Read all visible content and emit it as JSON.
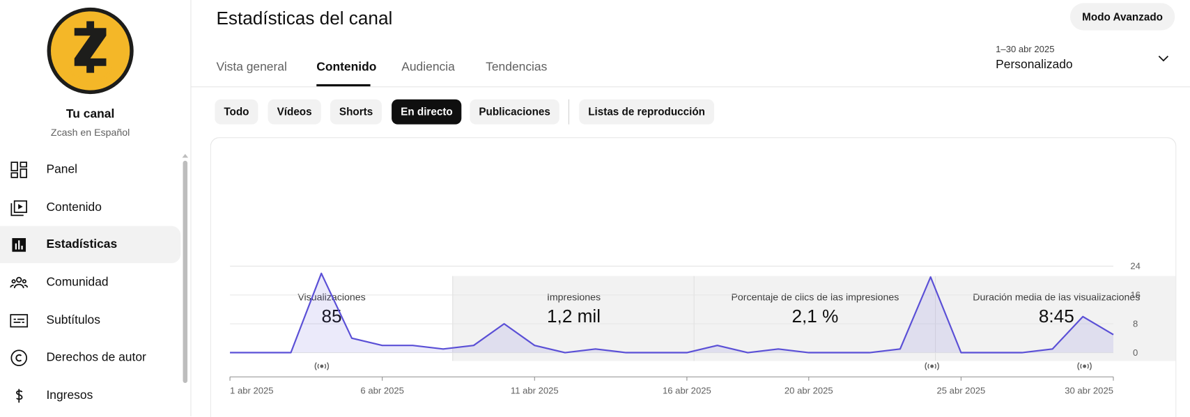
{
  "sidebar": {
    "avatar_text": "Zcash en español",
    "channel_label": "Tu canal",
    "channel_name": "Zcash en Español",
    "nav": [
      "Panel",
      "Contenido",
      "Estadísticas",
      "Comunidad",
      "Subtítulos",
      "Derechos de autor",
      "Ingresos"
    ]
  },
  "header": {
    "title": "Estadísticas del canal",
    "advanced_button": "Modo Avanzado",
    "date_range": "1–30 abr 2025",
    "period": "Personalizado"
  },
  "tabs": [
    "Vista general",
    "Contenido",
    "Audiencia",
    "Tendencias"
  ],
  "filters": [
    "Todo",
    "Vídeos",
    "Shorts",
    "En directo",
    "Publicaciones",
    "Listas de reproducción"
  ],
  "metrics": [
    {
      "label": "Visualizaciones",
      "value": "85"
    },
    {
      "label": "Impresiones",
      "value": "1,2 mil"
    },
    {
      "label": "Porcentaje de clics de las impresiones",
      "value": "2,1 %"
    },
    {
      "label": "Duración media de las visualizaciones",
      "value": "8:45"
    }
  ],
  "chart_data": {
    "type": "line",
    "categories": [
      "1 abr 2025",
      null,
      null,
      null,
      null,
      "6 abr 2025",
      null,
      null,
      null,
      null,
      "11 abr 2025",
      null,
      null,
      null,
      null,
      "16 abr 2025",
      null,
      null,
      null,
      "20 abr 2025",
      null,
      null,
      null,
      null,
      "25 abr 2025",
      null,
      null,
      null,
      null,
      "30 abr 2025"
    ],
    "values": [
      0,
      0,
      0,
      22,
      4,
      2,
      2,
      1,
      2,
      8,
      2,
      0,
      1,
      0,
      0,
      0,
      2,
      0,
      1,
      0,
      0,
      0,
      1,
      21,
      0,
      0,
      0,
      1,
      10,
      5
    ],
    "color": "#5a4fd6",
    "area": true,
    "ylim": [
      0,
      24
    ],
    "yticks": [
      0,
      8,
      16,
      24
    ],
    "grid": true
  }
}
